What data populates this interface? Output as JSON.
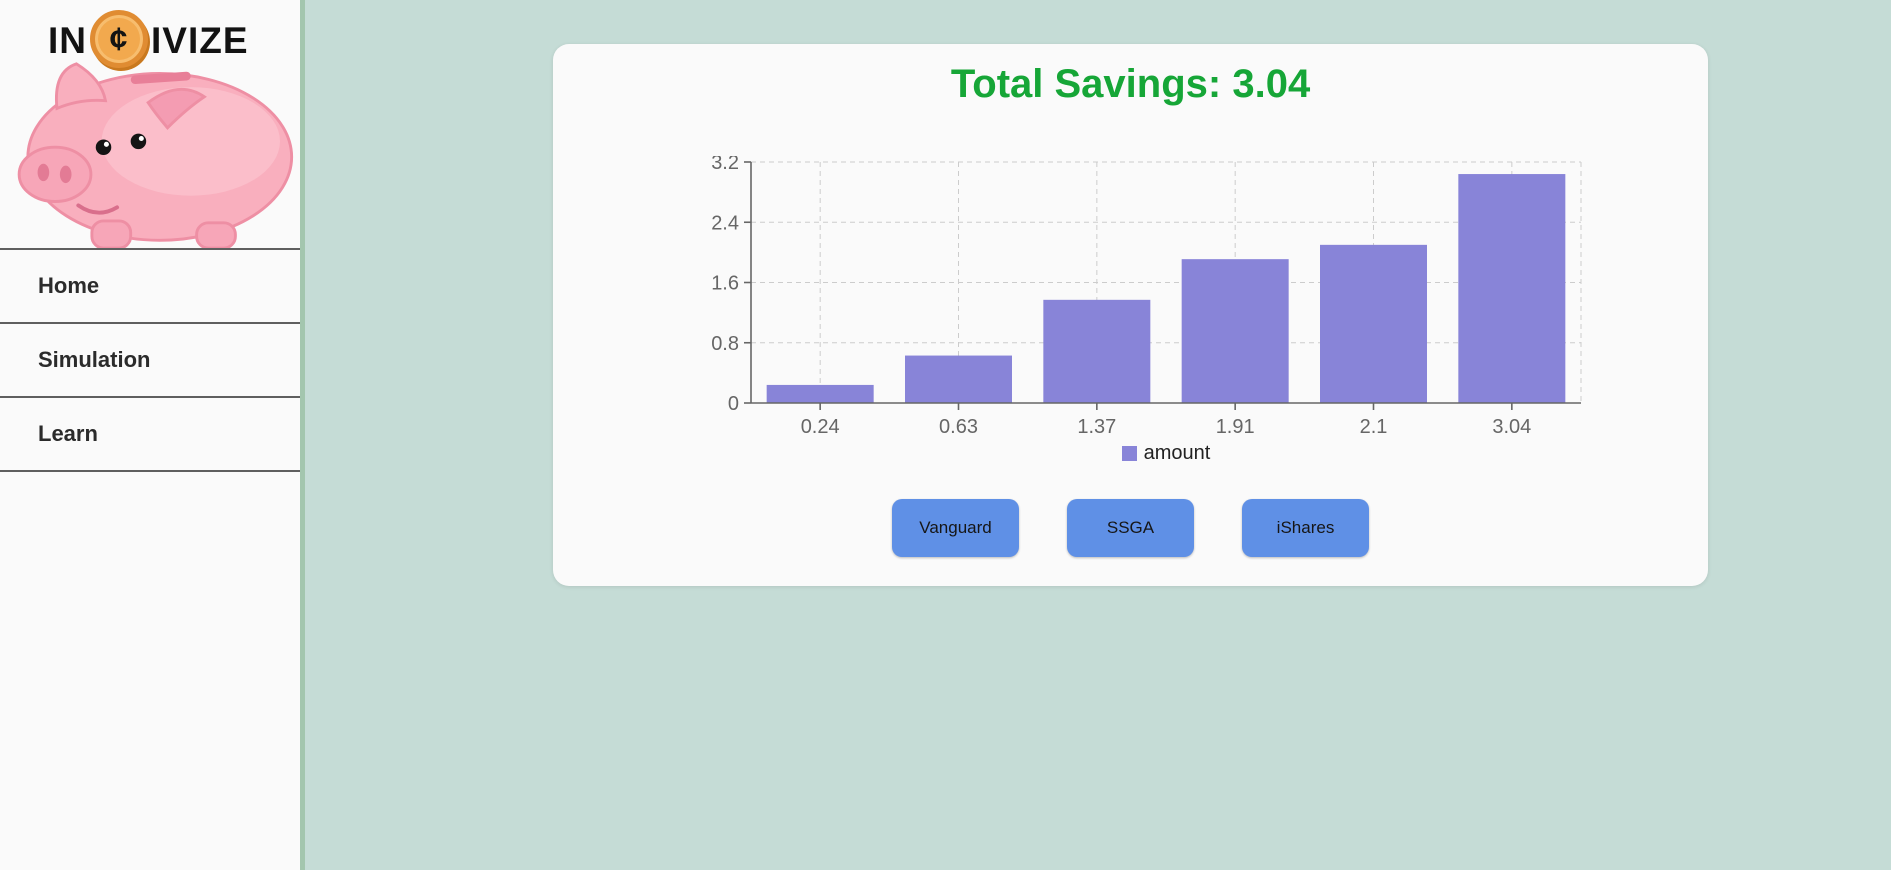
{
  "sidebar": {
    "logo": {
      "left": "IN",
      "coin_symbol": "¢",
      "right": "IVIZE"
    },
    "items": [
      {
        "label": "Home"
      },
      {
        "label": "Simulation"
      },
      {
        "label": "Learn"
      }
    ]
  },
  "main": {
    "title": "Total Savings: 3.04",
    "buttons": [
      {
        "label": "Vanguard"
      },
      {
        "label": "SSGA"
      },
      {
        "label": "iShares"
      }
    ]
  },
  "chart_data": {
    "type": "bar",
    "title": "Total Savings: 3.04",
    "categories": [
      "0.24",
      "0.63",
      "1.37",
      "1.91",
      "2.1",
      "3.04"
    ],
    "series": [
      {
        "name": "amount",
        "values": [
          0.24,
          0.63,
          1.37,
          1.91,
          2.1,
          3.04
        ]
      }
    ],
    "xlabel": "",
    "ylabel": "",
    "ylim": [
      0,
      3.2
    ],
    "y_ticks": [
      0,
      0.8,
      1.6,
      2.4,
      3.2
    ],
    "grid": true,
    "legend": {
      "label": "amount",
      "position": "bottom"
    },
    "bar_color": "#8884d8",
    "grid_color": "#cccccc",
    "axis_color": "#666666",
    "tick_label_color": "#666666"
  },
  "colors": {
    "page_background": "#c5dcd6",
    "sidebar_background": "#fafafa",
    "sidebar_border_green": "#a3c6ae",
    "card_background": "#fafafa",
    "title_green": "#16a637",
    "button_blue": "#5f90e6",
    "bar_purple": "#8884d8",
    "pig_pink": "#f9afbe",
    "coin_orange": "#f2a94e"
  }
}
